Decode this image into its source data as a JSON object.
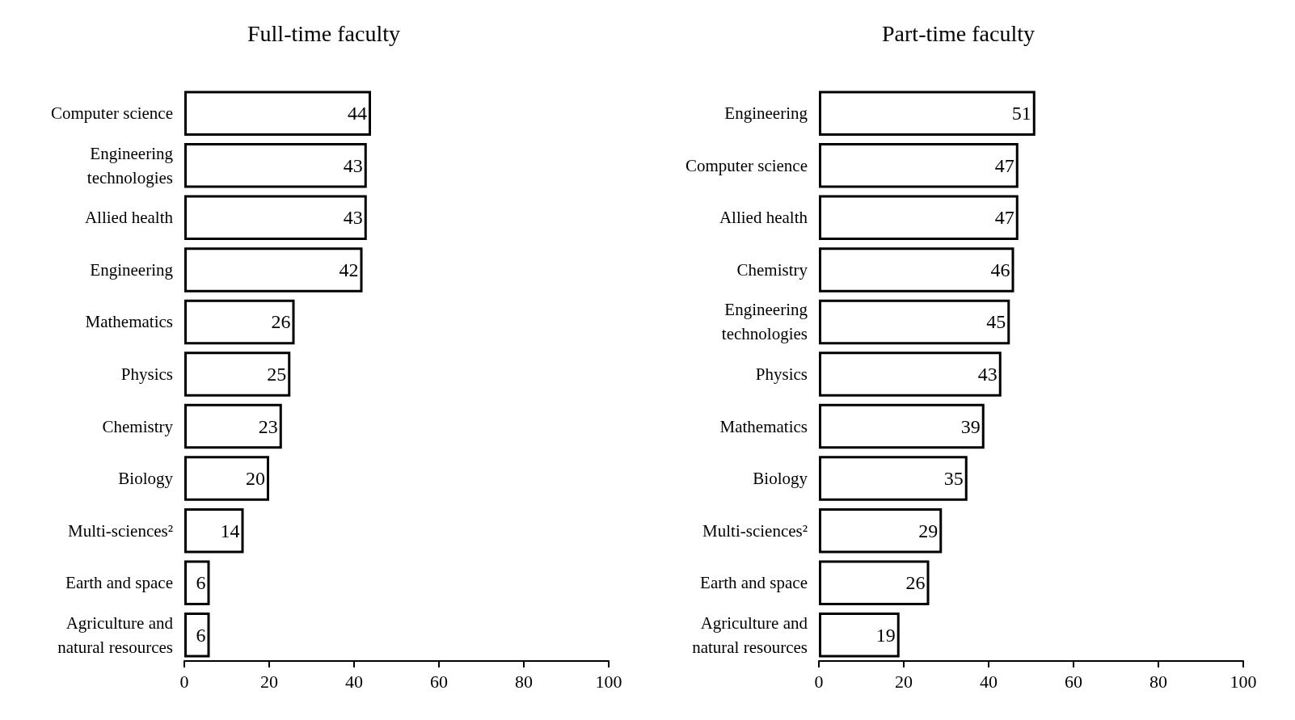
{
  "chart_data": [
    {
      "type": "bar",
      "orientation": "horizontal",
      "title": "Full-time faculty",
      "categories": [
        "Computer science",
        "Engineering\ntechnologies",
        "Allied health",
        "Engineering",
        "Mathematics",
        "Physics",
        "Chemistry",
        "Biology",
        "Multi-sciences²",
        "Earth and space",
        "Agriculture and\nnatural resources"
      ],
      "values": [
        44,
        43,
        43,
        42,
        26,
        25,
        23,
        20,
        14,
        6,
        6
      ],
      "color": "#ffffff",
      "xlim": [
        0,
        100
      ],
      "xticks": [
        0,
        20,
        40,
        60,
        80,
        100
      ],
      "data_labels": true,
      "grid": false
    },
    {
      "type": "bar",
      "orientation": "horizontal",
      "title": "Part-time faculty",
      "categories": [
        "Engineering",
        "Computer science",
        "Allied health",
        "Chemistry",
        "Engineering\ntechnologies",
        "Physics",
        "Mathematics",
        "Biology",
        "Multi-sciences²",
        "Earth and space",
        "Agriculture and\nnatural resources"
      ],
      "values": [
        51,
        47,
        47,
        46,
        45,
        43,
        39,
        35,
        29,
        26,
        19
      ],
      "color": "#ffffff",
      "xlim": [
        0,
        100
      ],
      "xticks": [
        0,
        20,
        40,
        60,
        80,
        100
      ],
      "data_labels": true,
      "grid": false
    }
  ]
}
